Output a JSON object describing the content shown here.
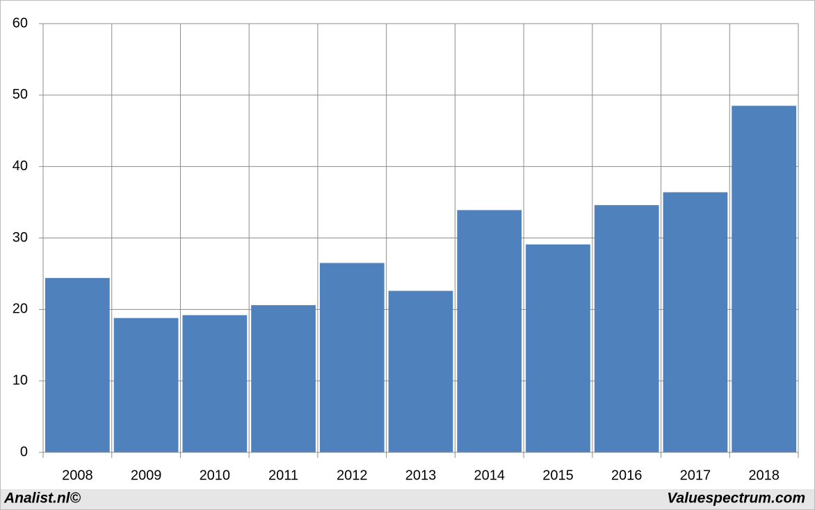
{
  "chart_data": {
    "type": "bar",
    "categories": [
      "2008",
      "2009",
      "2010",
      "2011",
      "2012",
      "2013",
      "2014",
      "2015",
      "2016",
      "2017",
      "2018"
    ],
    "values": [
      24.4,
      18.8,
      19.2,
      20.6,
      26.5,
      22.6,
      33.9,
      29.1,
      34.6,
      36.4,
      48.5
    ],
    "color": "#4f81bd",
    "ylim": [
      0,
      60
    ],
    "yticks": [
      0,
      10,
      20,
      30,
      40,
      50,
      60
    ],
    "grid": true,
    "credits": [
      "Analist.nl©",
      "Valuespectrum.com"
    ]
  }
}
